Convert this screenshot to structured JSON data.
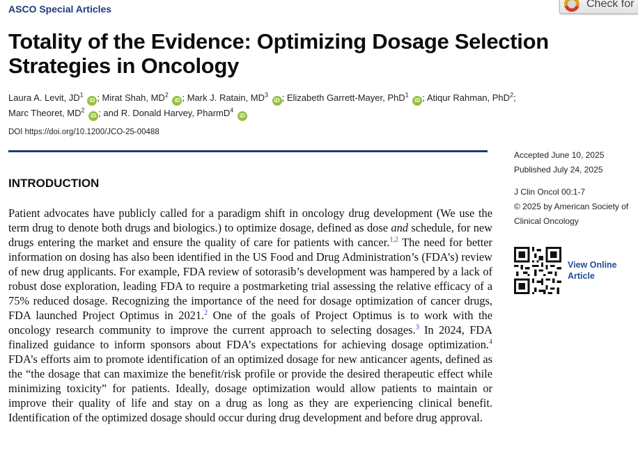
{
  "header": {
    "section_tag": "ASCO Special Articles",
    "check_badge_text": "Check for"
  },
  "article": {
    "title": "Totality of the Evidence: Optimizing Dosage Selection Strategies in Oncology",
    "authors": [
      {
        "name": "Laura A. Levit, JD",
        "aff": "1",
        "orcid": true,
        "sep": ";"
      },
      {
        "name": "Mirat Shah, MD",
        "aff": "2",
        "orcid": true,
        "sep": ";"
      },
      {
        "name": "Mark J. Ratain, MD",
        "aff": "3",
        "orcid": true,
        "sep": ";"
      },
      {
        "name": "Elizabeth Garrett-Mayer, PhD",
        "aff": "1",
        "orcid": true,
        "sep": ";"
      },
      {
        "name": "Atiqur Rahman, PhD",
        "aff": "2",
        "orcid": false,
        "sep": ";"
      },
      {
        "name": "Marc Theoret, MD",
        "aff": "2",
        "orcid": true,
        "sep": "; and"
      },
      {
        "name": "R. Donald Harvey, PharmD",
        "aff": "4",
        "orcid": true,
        "sep": ""
      }
    ],
    "orcid_label": "iD",
    "doi": "DOI https://doi.org/10.1200/JCO-25-00488",
    "section_heading": "INTRODUCTION",
    "body_segments": [
      {
        "t": "Patient advocates have publicly called for a paradigm shift in oncology drug development (We use the term drug to denote both drugs and biologics.) to optimize dosage, defined as dose "
      },
      {
        "t": "and",
        "style": "em"
      },
      {
        "t": " schedule, for new drugs entering the market and ensure the quality of care for patients with cancer."
      },
      {
        "t": "1,2",
        "style": "sup"
      },
      {
        "t": " The need for better information on dosing has also been identified in the US Food and Drug Administration’s (FDA’s) review of new drug applicants. For example, FDA review of sotorasib’s development was hampered by a lack of robust dose exploration, leading FDA to require a postmarketing trial assessing the relative efficacy of a 75% reduced dosage. Rec­ognizing the importance of the need for dosage optimization of cancer drugs, FDA launched Project Optimus in 2021."
      },
      {
        "t": "2",
        "style": "sup"
      },
      {
        "t": " One of the goals of Project Optimus is to work with the oncology research community to improve the current approach to selecting dosages."
      },
      {
        "t": "3",
        "style": "sup"
      },
      {
        "t": " In 2024, FDA finalized guidance to inform sponsors about FDA’s expectations for achieving dosage opti­mization."
      },
      {
        "t": "4",
        "style": "sup"
      },
      {
        "t": " FDA’s efforts aim to promote identification of an optimized dosage for new anti­cancer agents, defined as the “the dosage that can maximize the benefit/risk profile or provide the desired therapeutic effect while minimizing toxicity” for patients. Ideally, dosage opti­mization would allow patients to maintain or improve their quality of life and stay on a drug as long as they are experiencing clinical benefit. Identification of the optimized dosage should occur during drug development and before drug approval."
      }
    ]
  },
  "sidebar": {
    "accepted": "Accepted June 10, 2025",
    "published": "Published July 24, 2025",
    "citation": "J Clin Oncol 00:1-7",
    "copyright": "© 2025 by American Society of Clinical Oncology",
    "view_online_label": "View Online Article"
  },
  "colors": {
    "brand_navy": "#1f3a7a",
    "link_blue": "#1f4fa0",
    "orcid_green": "#93c13d"
  }
}
